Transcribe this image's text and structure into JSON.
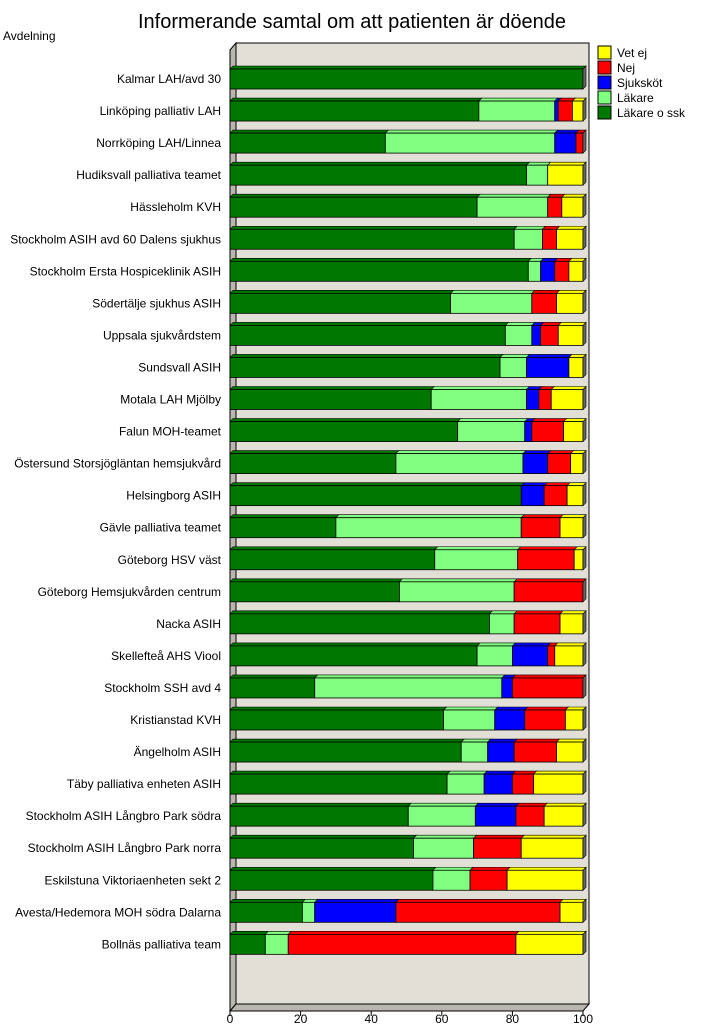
{
  "chart_data": {
    "type": "bar",
    "orientation": "horizontal",
    "stacked": true,
    "title": "Informerande samtal om att patienten är döende",
    "ylabel": "Avdelning",
    "xlabel": "",
    "xlim": [
      0,
      100
    ],
    "xticks": [
      0,
      20,
      40,
      60,
      80,
      100
    ],
    "grid": false,
    "legend_position": "top-right",
    "categories": [
      "Kalmar LAH/avd 30",
      "Linköping palliativ LAH",
      "Norrköping LAH/Linnea",
      "Hudiksvall palliativa teamet",
      "Hässleholm KVH",
      "Stockholm ASIH avd 60 Dalens sjukhus",
      "Stockholm Ersta Hospiceklinik ASIH",
      "Södertälje sjukhus ASIH",
      "Uppsala sjukvårdstem",
      "Sundsvall ASIH",
      "Motala LAH Mjölby",
      "Falun MOH-teamet",
      "Östersund Storsjögläntan hemsjukvård",
      "Helsingborg ASIH",
      "Gävle palliativa teamet",
      "Göteborg HSV väst",
      "Göteborg Hemsjukvården centrum",
      "Nacka ASIH",
      "Skellefteå AHS Viool",
      "Stockholm SSH avd 4",
      "Kristianstad KVH",
      "Ängelholm ASIH",
      "Täby palliativa enheten ASIH",
      "Stockholm ASIH Långbro Park södra",
      "Stockholm ASIH Långbro Park norra",
      "Eskilstuna Viktoriaenheten sekt 2",
      "Avesta/Hedemora MOH södra Dalarna",
      "Bollnäs palliativa team"
    ],
    "series": [
      {
        "name": "Läkare o ssk",
        "color": "#007800",
        "values": [
          100,
          70.5,
          44,
          84,
          70,
          80.5,
          84.5,
          62.5,
          78,
          76.5,
          57,
          64.5,
          47,
          82.5,
          30,
          58,
          48,
          73.5,
          70,
          24,
          60.5,
          65.5,
          61.5,
          50.5,
          52,
          57.5,
          20.5,
          10
        ]
      },
      {
        "name": "Läkare",
        "color": "#80ff80",
        "values": [
          0,
          21.5,
          48,
          6,
          20,
          8,
          3.5,
          23,
          7.5,
          7.5,
          27,
          19,
          36,
          0,
          52.5,
          23.5,
          32.5,
          7,
          10,
          53,
          14.5,
          7.5,
          10.5,
          19,
          17,
          10.5,
          3.5,
          6.5
        ]
      },
      {
        "name": "Sjuksköt",
        "color": "#0000ff",
        "values": [
          0,
          1,
          6,
          0,
          0,
          0,
          4,
          0,
          2.5,
          12,
          3.5,
          2,
          7,
          6.5,
          0,
          0,
          0,
          0,
          10,
          3,
          8.5,
          7.5,
          8,
          11.5,
          0,
          0,
          23,
          0
        ]
      },
      {
        "name": "Nej",
        "color": "#ff0000",
        "values": [
          0,
          4,
          2,
          0,
          4,
          4,
          4,
          7,
          5,
          0,
          3.5,
          9,
          6.5,
          6.5,
          11,
          16,
          19.5,
          13,
          2,
          20,
          11.5,
          12,
          6,
          8,
          13.5,
          10.5,
          46.5,
          64.5
        ]
      },
      {
        "name": "Vet ej",
        "color": "#ffff00",
        "values": [
          0,
          3,
          0,
          10,
          6,
          7.5,
          4,
          7.5,
          7,
          4,
          9,
          5.5,
          3.5,
          4.5,
          6.5,
          2.5,
          0,
          6.5,
          8,
          0,
          5,
          7.5,
          14,
          11,
          17.5,
          21.5,
          6.5,
          19
        ]
      }
    ]
  }
}
